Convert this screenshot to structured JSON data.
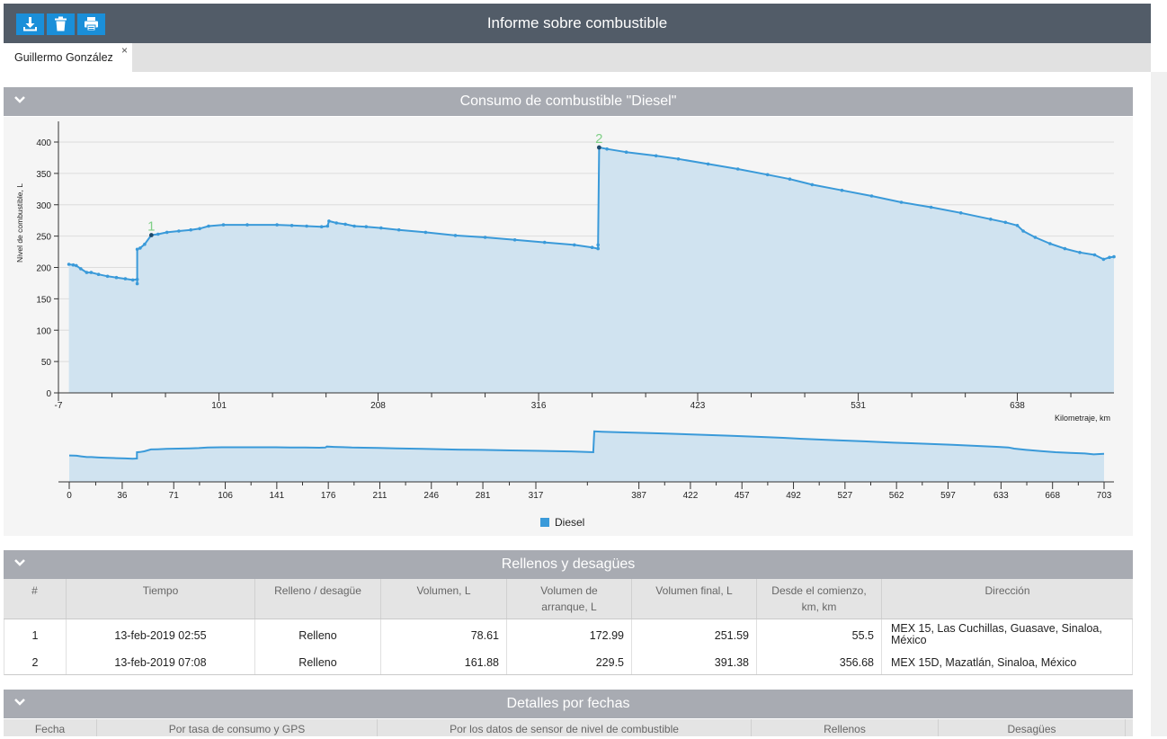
{
  "app": {
    "title": "Informe sobre combustible"
  },
  "toolbar": [
    {
      "name": "download-button",
      "icon": "download-icon"
    },
    {
      "name": "delete-button",
      "icon": "trash-icon"
    },
    {
      "name": "print-button",
      "icon": "print-icon"
    }
  ],
  "tab": {
    "label": "Guillermo González",
    "close": "×"
  },
  "chart_panel": {
    "title": "Consumo de combustible \"Diesel\""
  },
  "chart_data": {
    "type": "area",
    "ylabel": "Nivel de combustible, L",
    "xlabel": "Kilometraje, km",
    "ylim": [
      0,
      400
    ],
    "y_ticks": [
      0,
      50,
      100,
      150,
      200,
      250,
      300,
      350,
      400
    ],
    "xlim": [
      -7,
      703
    ],
    "x_ticks": [
      "-7",
      "101",
      "208",
      "316",
      "423",
      "531",
      "638"
    ],
    "nav_ticks": [
      "0",
      "36",
      "71",
      "106",
      "141",
      "176",
      "211",
      "246",
      "281",
      "317",
      "387",
      "422",
      "457",
      "492",
      "527",
      "562",
      "597",
      "633",
      "668",
      "703"
    ],
    "grid": true,
    "legend": {
      "label": "Diesel",
      "position": "bottom-center"
    },
    "accent_color": "#3a9ad9",
    "fill_color": "#d0e3f0",
    "markers": [
      {
        "label": "1",
        "x": 55.5,
        "y": 251.59
      },
      {
        "label": "2",
        "x": 356.68,
        "y": 391.38
      }
    ],
    "series": [
      {
        "name": "Diesel",
        "points": [
          [
            0,
            205
          ],
          [
            3,
            204
          ],
          [
            5,
            203
          ],
          [
            8,
            198
          ],
          [
            12,
            192
          ],
          [
            15,
            192
          ],
          [
            20,
            189
          ],
          [
            26,
            186
          ],
          [
            32,
            184
          ],
          [
            38,
            182
          ],
          [
            43,
            180
          ],
          [
            46,
            181
          ],
          [
            46,
            174
          ],
          [
            46,
            229
          ],
          [
            48,
            231
          ],
          [
            51,
            237
          ],
          [
            55.5,
            251.59
          ],
          [
            60,
            253
          ],
          [
            66,
            256
          ],
          [
            74,
            258
          ],
          [
            82,
            260
          ],
          [
            88,
            262
          ],
          [
            94,
            266
          ],
          [
            104,
            268
          ],
          [
            120,
            268
          ],
          [
            140,
            268
          ],
          [
            150,
            267
          ],
          [
            160,
            266
          ],
          [
            170,
            265
          ],
          [
            174,
            266
          ],
          [
            175,
            274
          ],
          [
            180,
            271
          ],
          [
            186,
            269
          ],
          [
            192,
            266
          ],
          [
            200,
            265
          ],
          [
            210,
            263
          ],
          [
            222,
            260
          ],
          [
            240,
            256
          ],
          [
            260,
            251
          ],
          [
            280,
            248
          ],
          [
            300,
            244
          ],
          [
            320,
            240
          ],
          [
            340,
            236
          ],
          [
            352,
            232
          ],
          [
            356,
            230
          ],
          [
            356,
            236
          ],
          [
            356.68,
            391.38
          ],
          [
            362,
            389
          ],
          [
            375,
            384
          ],
          [
            395,
            378
          ],
          [
            410,
            373
          ],
          [
            430,
            365
          ],
          [
            450,
            357
          ],
          [
            470,
            348
          ],
          [
            485,
            341
          ],
          [
            500,
            332
          ],
          [
            520,
            323
          ],
          [
            540,
            314
          ],
          [
            560,
            304
          ],
          [
            580,
            296
          ],
          [
            600,
            287
          ],
          [
            620,
            277
          ],
          [
            630,
            272
          ],
          [
            638,
            267
          ],
          [
            642,
            258
          ],
          [
            650,
            248
          ],
          [
            660,
            238
          ],
          [
            670,
            230
          ],
          [
            680,
            224
          ],
          [
            690,
            220
          ],
          [
            696,
            213
          ],
          [
            700,
            216
          ],
          [
            703,
            217
          ]
        ]
      }
    ]
  },
  "refills": {
    "title": "Rellenos y desagües",
    "columns": [
      "#",
      "Tiempo",
      "Relleno / desagüe",
      "Volumen, L",
      "Volumen de arranque, L",
      "Volumen final, L",
      "Desde el comienzo, km, km",
      "Dirección"
    ],
    "rows": [
      [
        "1",
        "13-feb-2019 02:55",
        "Relleno",
        "78.61",
        "172.99",
        "251.59",
        "55.5",
        "MEX 15, Las Cuchillas, Guasave, Sinaloa, México"
      ],
      [
        "2",
        "13-feb-2019 07:08",
        "Relleno",
        "161.88",
        "229.5",
        "391.38",
        "356.68",
        "MEX 15D, Mazatlán, Sinaloa, México"
      ]
    ]
  },
  "details": {
    "title": "Detalles por fechas",
    "columns": [
      "Fecha",
      "Por tasa de consumo y GPS",
      "Por los datos de sensor de nivel de combustible",
      "Rellenos",
      "Desagües"
    ]
  }
}
